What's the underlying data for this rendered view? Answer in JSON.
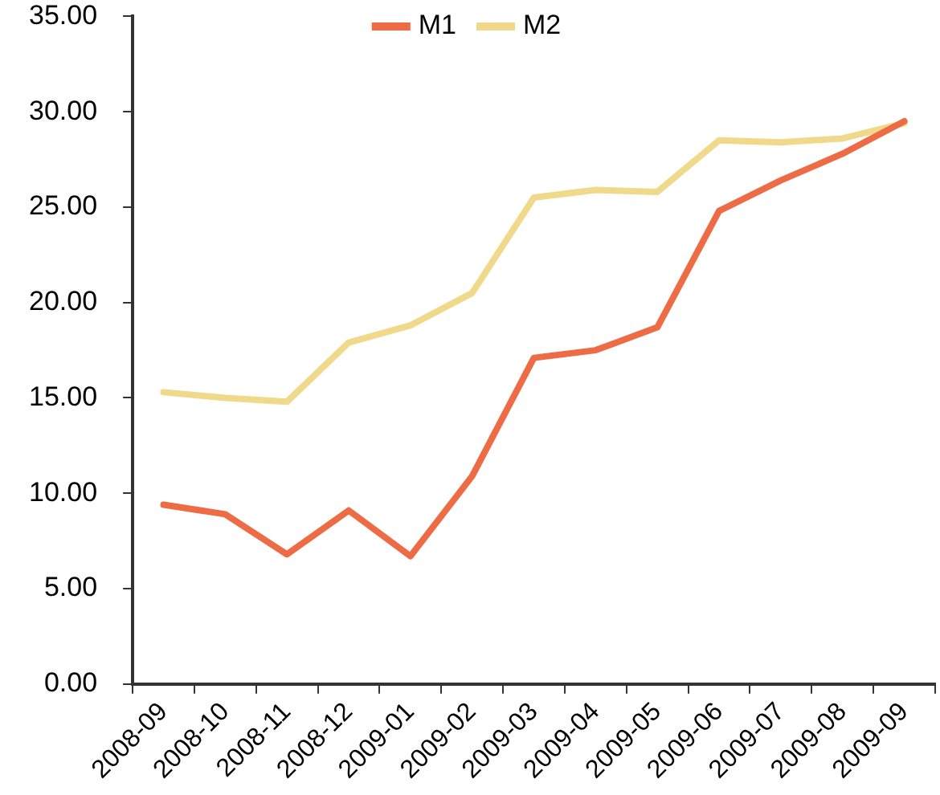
{
  "chart_data": {
    "type": "line",
    "categories": [
      "2008-09",
      "2008-10",
      "2008-11",
      "2008-12",
      "2009-01",
      "2009-02",
      "2009-03",
      "2009-04",
      "2009-05",
      "2009-06",
      "2009-07",
      "2009-08",
      "2009-09"
    ],
    "series": [
      {
        "name": "M1",
        "color": "#ed6b45",
        "values": [
          9.4,
          8.9,
          6.8,
          9.1,
          6.7,
          10.9,
          17.1,
          17.5,
          18.7,
          24.8,
          26.4,
          27.8,
          29.5
        ]
      },
      {
        "name": "M2",
        "color": "#f0d98a",
        "values": [
          15.3,
          15.0,
          14.8,
          17.9,
          18.8,
          20.5,
          25.5,
          25.9,
          25.8,
          28.5,
          28.4,
          28.6,
          29.4
        ]
      }
    ],
    "ylim": [
      0,
      35
    ],
    "yticks": [
      {
        "value": 0,
        "label": "0.00"
      },
      {
        "value": 5,
        "label": "5.00"
      },
      {
        "value": 10,
        "label": "10.00"
      },
      {
        "value": 15,
        "label": "15.00"
      },
      {
        "value": 20,
        "label": "20.00"
      },
      {
        "value": 25,
        "label": "25.00"
      },
      {
        "value": 30,
        "label": "30.00"
      },
      {
        "value": 35,
        "label": "35.00"
      }
    ],
    "legend": "top",
    "marker": "none",
    "line_style": "solid"
  }
}
